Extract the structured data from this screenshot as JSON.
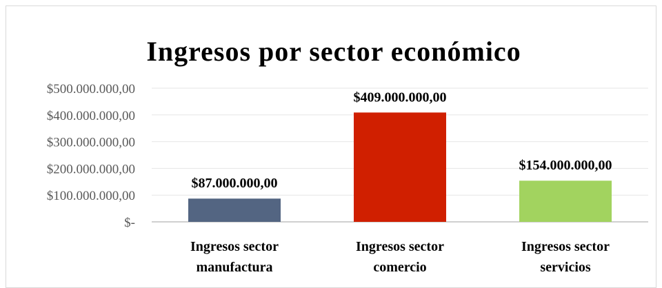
{
  "chart_data": {
    "type": "bar",
    "title": "Ingresos por sector económico",
    "categories": [
      [
        "Ingresos sector",
        "manufactura"
      ],
      [
        "Ingresos sector",
        "comercio"
      ],
      [
        "Ingresos sector",
        "servicios"
      ]
    ],
    "values": [
      87000000,
      409000000,
      154000000
    ],
    "data_labels": [
      "$87.000.000,00",
      "$409.000.000,00",
      "$154.000.000,00"
    ],
    "colors": [
      "#536582",
      "#d01f00",
      "#a2d35f"
    ],
    "ylim": [
      0,
      500000000
    ],
    "yticks": [
      0,
      100000000,
      200000000,
      300000000,
      400000000,
      500000000
    ],
    "ytick_labels": [
      "$-",
      "$100.000.000,00",
      "$200.000.000,00",
      "$300.000.000,00",
      "$400.000.000,00",
      "$500.000.000,00"
    ],
    "grid": true,
    "gridline_color": "#e6e6e6",
    "axis_color": "#bfbfbf",
    "legend": "none"
  }
}
